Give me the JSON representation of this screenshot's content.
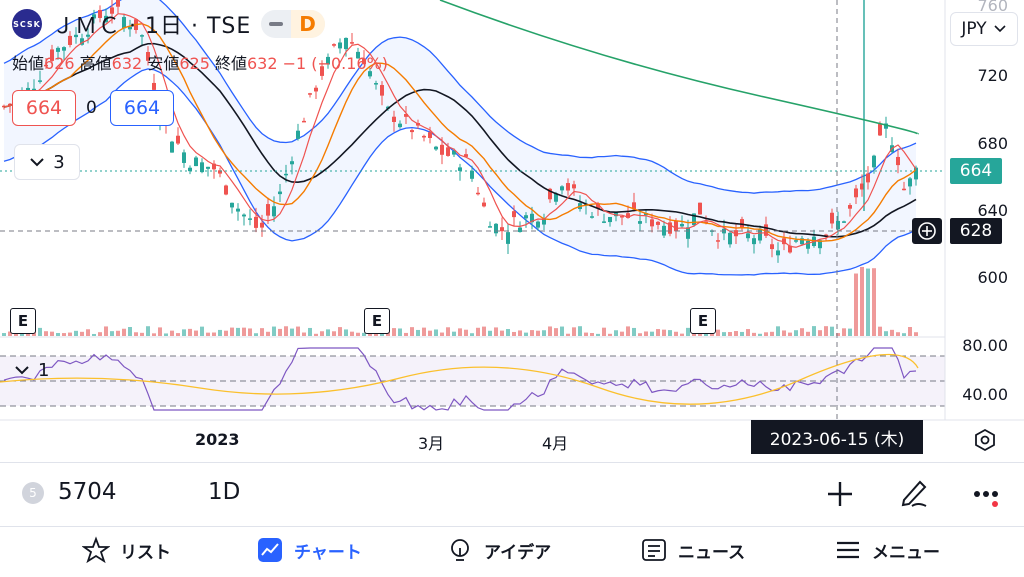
{
  "header": {
    "logo_text": "SCSK",
    "title": "ＪＭＣ · 1日 · TSE",
    "badge_letter": "D"
  },
  "ohlc": {
    "open_label": "始値",
    "open": "626",
    "high_label": "高値",
    "high": "632",
    "low_label": "安値",
    "low": "625",
    "close_label": "終値",
    "close": "632",
    "change": "−1 (−0.16%)"
  },
  "buttons": {
    "sell_price": "664",
    "spread": "0",
    "buy_price": "664",
    "indicator_count": "3",
    "rsi_count": "1"
  },
  "price_axis": {
    "currency": "JPY",
    "ticks": [
      "720",
      "680",
      "640",
      "600"
    ],
    "top_partial": "760",
    "current_price": "664",
    "crosshair_price": "628"
  },
  "rsi_axis": {
    "ticks": [
      "80.00",
      "40.00"
    ]
  },
  "time_axis": {
    "labels": [
      "2023",
      "3月",
      "4月"
    ],
    "crosshair_date": "2023-06-15 (木)"
  },
  "earnings_marker": "E",
  "colors": {
    "up": "#26a69a",
    "down": "#ef5350",
    "bollinger": "#2962ff",
    "ma_long": "#26a269",
    "ma_black": "#131722",
    "ma_orange": "#f57c00",
    "rsi_line": "#7e57c2",
    "rsi_ma": "#fbc02d"
  },
  "toolbar": {
    "badge": "5",
    "symbol": "5704",
    "interval": "1D",
    "add_icon": "plus-icon",
    "draw_icon": "pen-icon",
    "more_icon": "more-icon"
  },
  "nav": {
    "items": [
      {
        "label": "リスト",
        "icon": "star-icon"
      },
      {
        "label": "チャート",
        "icon": "chart-icon"
      },
      {
        "label": "アイデア",
        "icon": "bulb-icon"
      },
      {
        "label": "ニュース",
        "icon": "news-icon"
      },
      {
        "label": "メニュー",
        "icon": "menu-icon"
      }
    ]
  }
}
